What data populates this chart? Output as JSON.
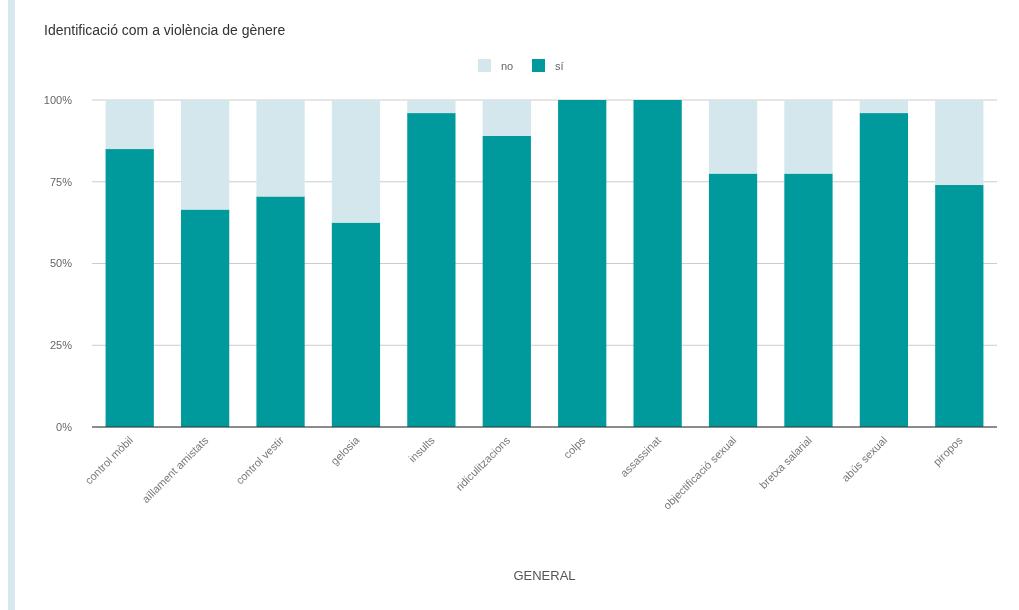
{
  "chart_data": {
    "type": "bar",
    "title": "Identificació com a violència de gènere",
    "xlabel": "GENERAL",
    "stacked": true,
    "categories": [
      "control mòbil",
      "aïllament amistats",
      "control vestir",
      "gelosia",
      "insults",
      "ridiculitzacions",
      "colps",
      "assassinat",
      "objectificació sexual",
      "bretxa salarial",
      "abús sexual",
      "piropos"
    ],
    "series": [
      {
        "name": "sí",
        "color": "#009a9c",
        "values": [
          85,
          66.5,
          70.5,
          62.5,
          96,
          89,
          100,
          100,
          77.5,
          77.5,
          96,
          74
        ]
      },
      {
        "name": "no",
        "color": "#d4e7ec",
        "values": [
          15,
          33.5,
          29.5,
          37.5,
          4,
          11,
          0,
          0,
          22.5,
          22.5,
          4,
          26
        ]
      }
    ],
    "ylim": [
      0,
      100
    ],
    "yticks": [
      {
        "value": 0,
        "label": "0%"
      },
      {
        "value": 25,
        "label": "25%"
      },
      {
        "value": 50,
        "label": "50%"
      },
      {
        "value": 75,
        "label": "75%"
      },
      {
        "value": 100,
        "label": "100%"
      }
    ],
    "grid": "y",
    "legend": "top"
  }
}
